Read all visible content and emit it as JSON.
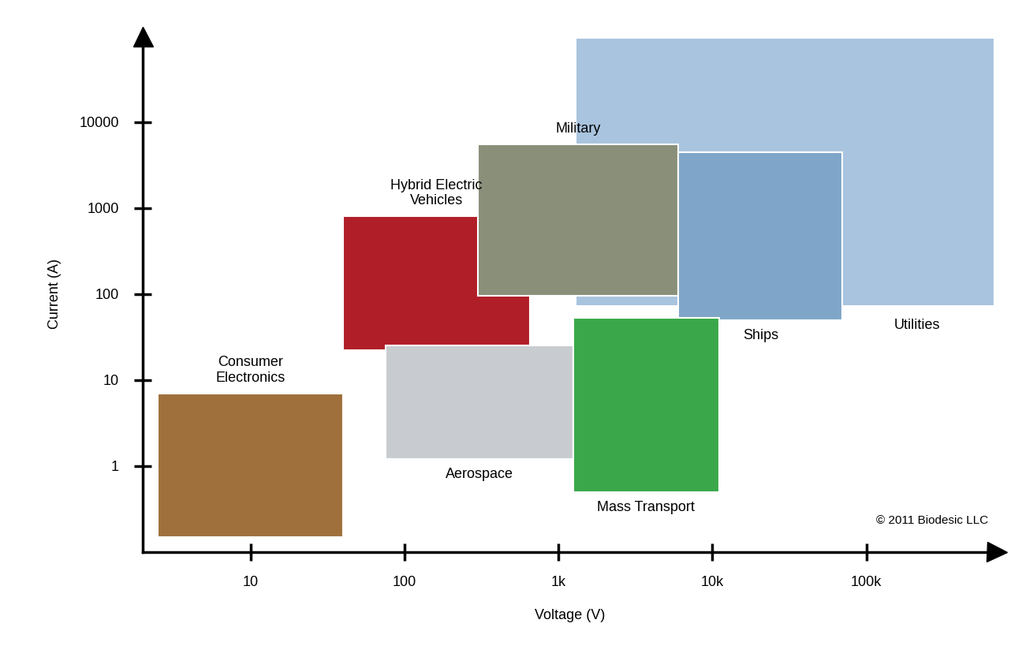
{
  "chart_data": {
    "type": "region",
    "x_label": "Voltage (V)",
    "y_label": "Current (A)",
    "log": true,
    "grid": false,
    "xlim": [
      2,
      700000
    ],
    "ylim": [
      0.1,
      100000
    ],
    "xticks": [
      10,
      100,
      {
        "value": 1000,
        "label": "1k"
      },
      {
        "value": 10000,
        "label": "10k"
      },
      {
        "value": 100000,
        "label": "100k"
      }
    ],
    "yticks": [
      1,
      10,
      100,
      1000,
      10000
    ],
    "series": [
      {
        "name": "Utilities",
        "color": "#a9c4de",
        "x": [
          1300,
          680000
        ],
        "y": [
          73,
          95000
        ]
      },
      {
        "name": "Hybrid Electric\nVehicles",
        "color": "#b01e28",
        "x": [
          40,
          650
        ],
        "y": [
          22,
          800
        ]
      },
      {
        "name": "Aerospace",
        "color": "#c8ccd0",
        "x": [
          75,
          1250
        ],
        "y": [
          1.2,
          25
        ]
      },
      {
        "name": "Military",
        "color": "#8a8f7a",
        "x": [
          300,
          6000
        ],
        "y": [
          95,
          5500
        ]
      },
      {
        "name": "Ships",
        "color": "#7fa6c8",
        "x": [
          6000,
          70000
        ],
        "y": [
          50,
          4500
        ]
      },
      {
        "name": "Mass Transport",
        "color": "#3aa84a",
        "x": [
          1250,
          11000
        ],
        "y": [
          0.5,
          53
        ]
      },
      {
        "name": "Consumer\nElectronics",
        "color": "#a0703c",
        "x": [
          2.5,
          40
        ],
        "y": [
          0.15,
          7
        ]
      }
    ],
    "annotation": "© 2011 Biodesic LLC"
  }
}
